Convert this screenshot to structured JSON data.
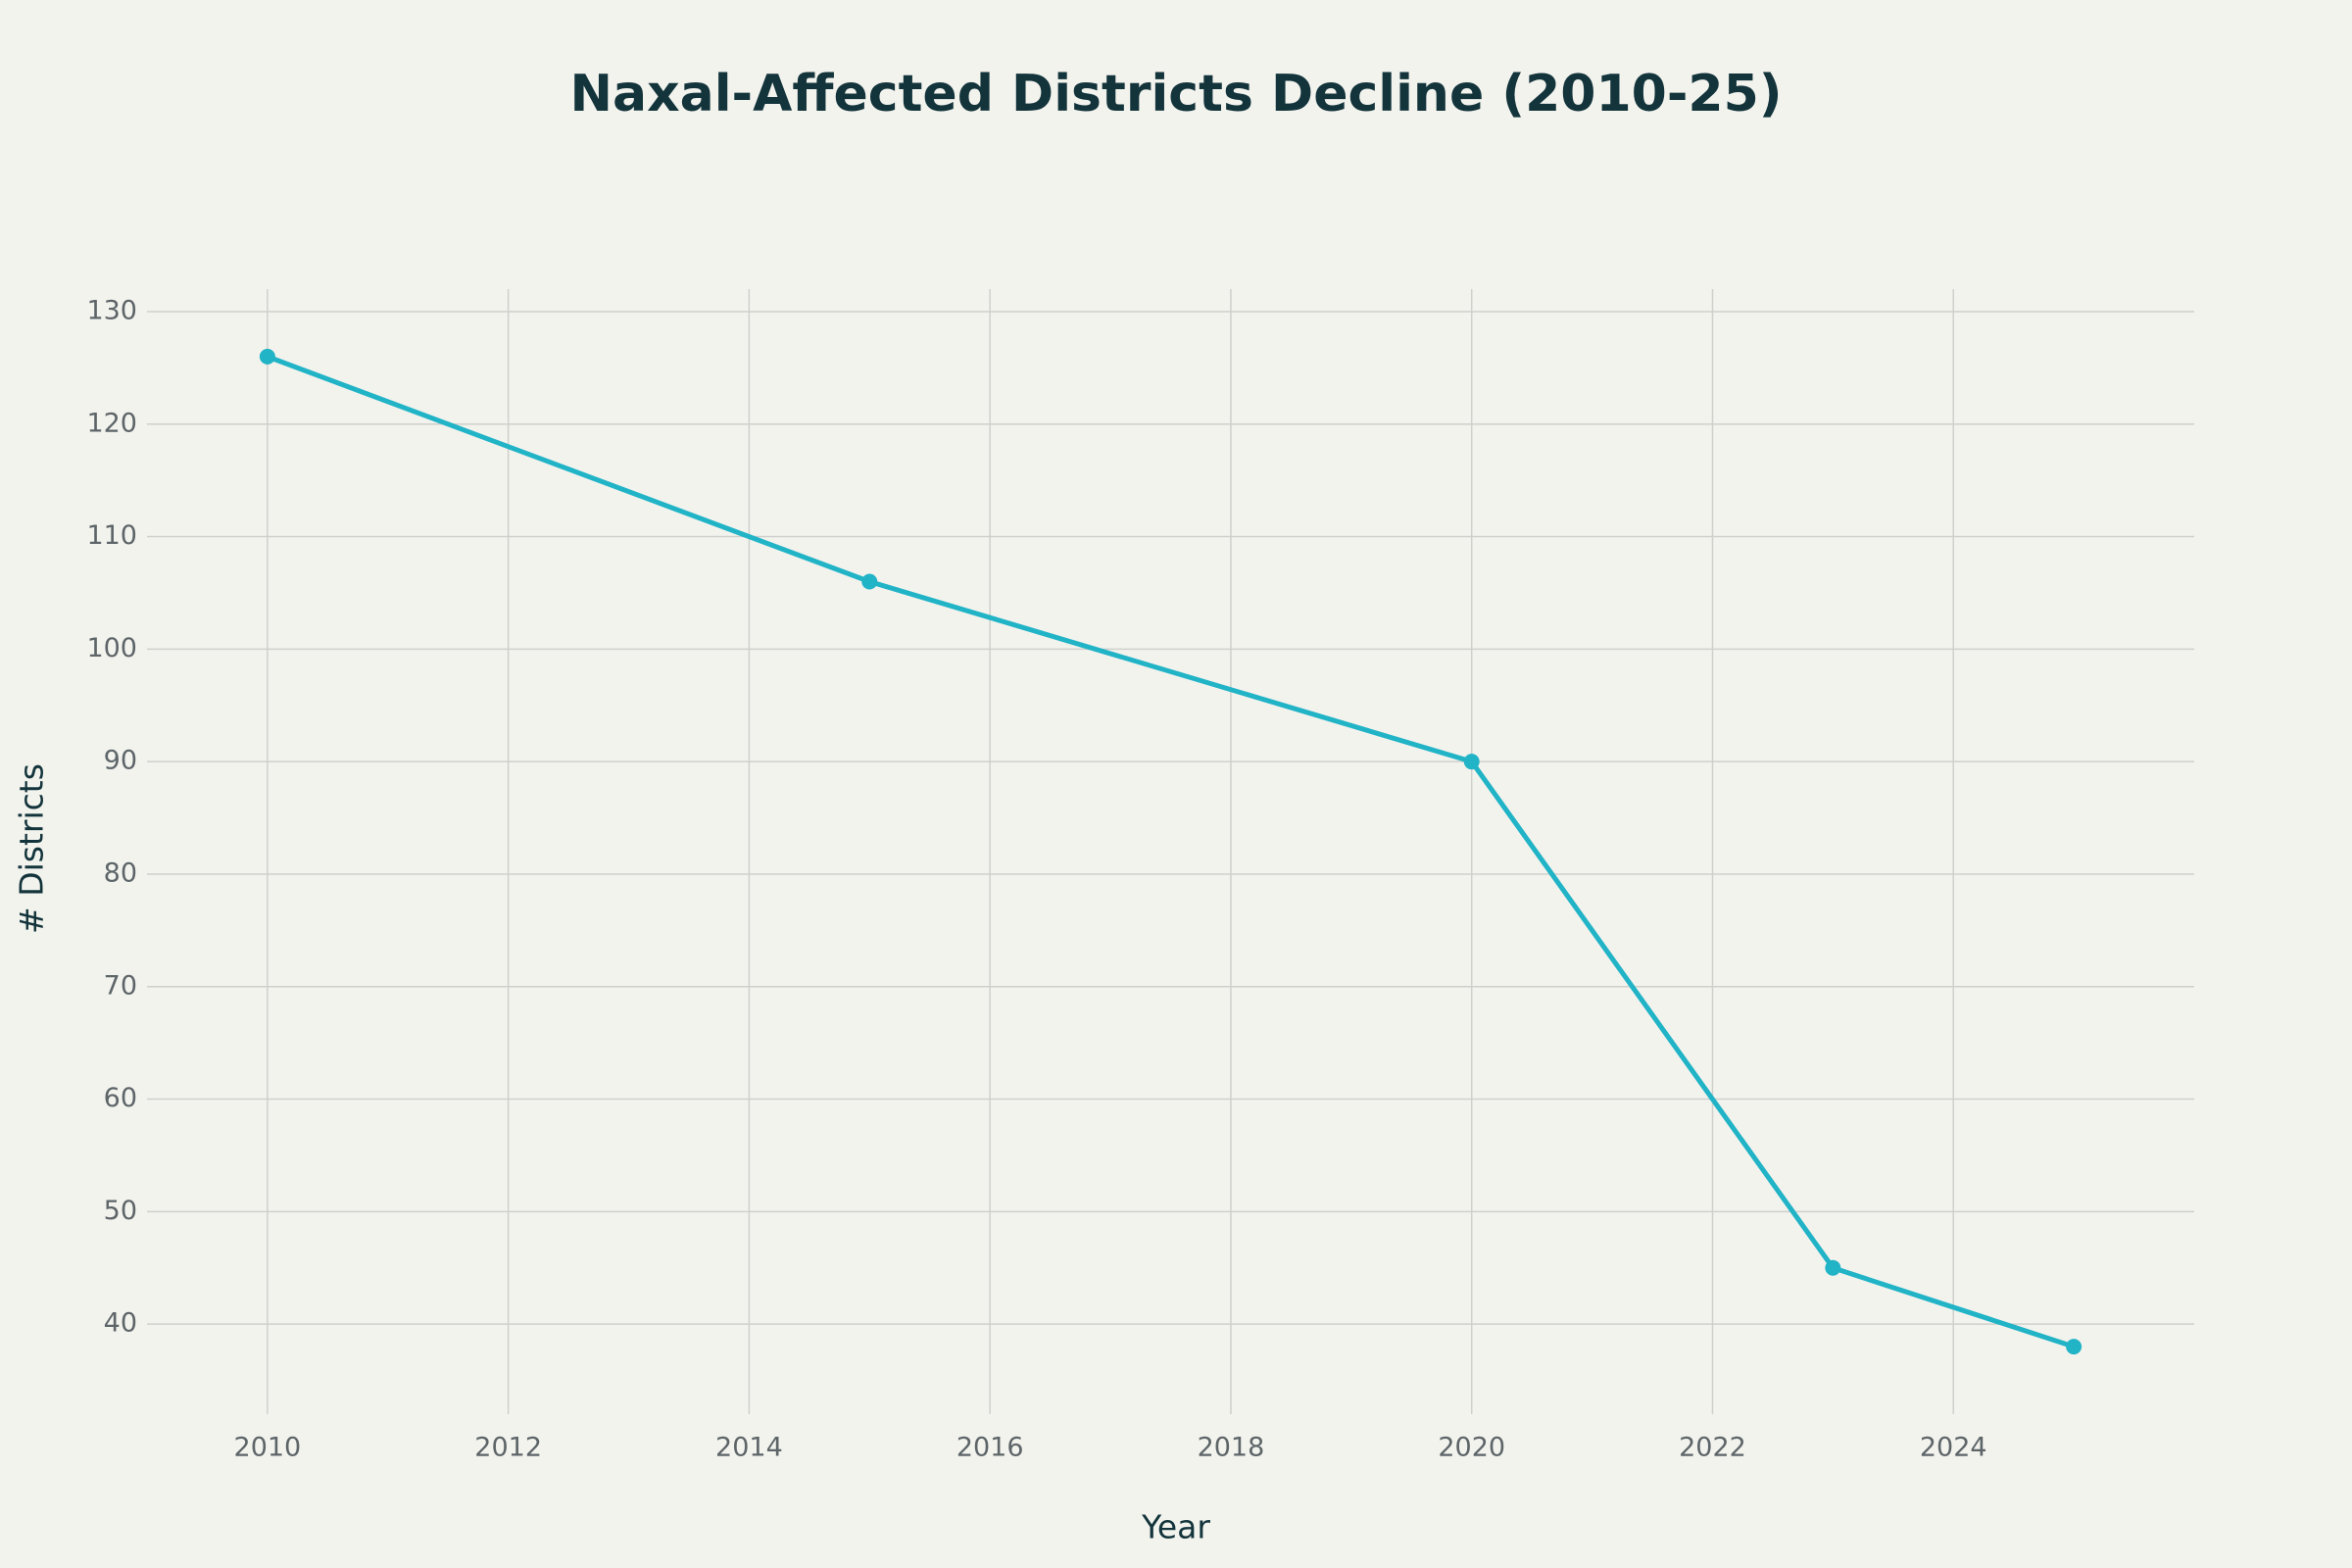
{
  "chart_data": {
    "type": "line",
    "title": "Naxal-Affected Districts Decline (2010-25)",
    "x_label": "Year",
    "y_label": "# Districts",
    "x": [
      2010,
      2015,
      2020,
      2023,
      2025
    ],
    "series": [
      {
        "name": "Districts",
        "color": "#21b3c6",
        "values": [
          126,
          106,
          90,
          45,
          38
        ]
      }
    ],
    "xlim": [
      2009,
      2026
    ],
    "xticks": [
      2010,
      2012,
      2014,
      2016,
      2018,
      2020,
      2022,
      2024
    ],
    "ylim": [
      32,
      132
    ],
    "yticks": [
      40,
      50,
      60,
      70,
      80,
      90,
      100,
      110,
      120,
      130
    ],
    "grid": true
  }
}
